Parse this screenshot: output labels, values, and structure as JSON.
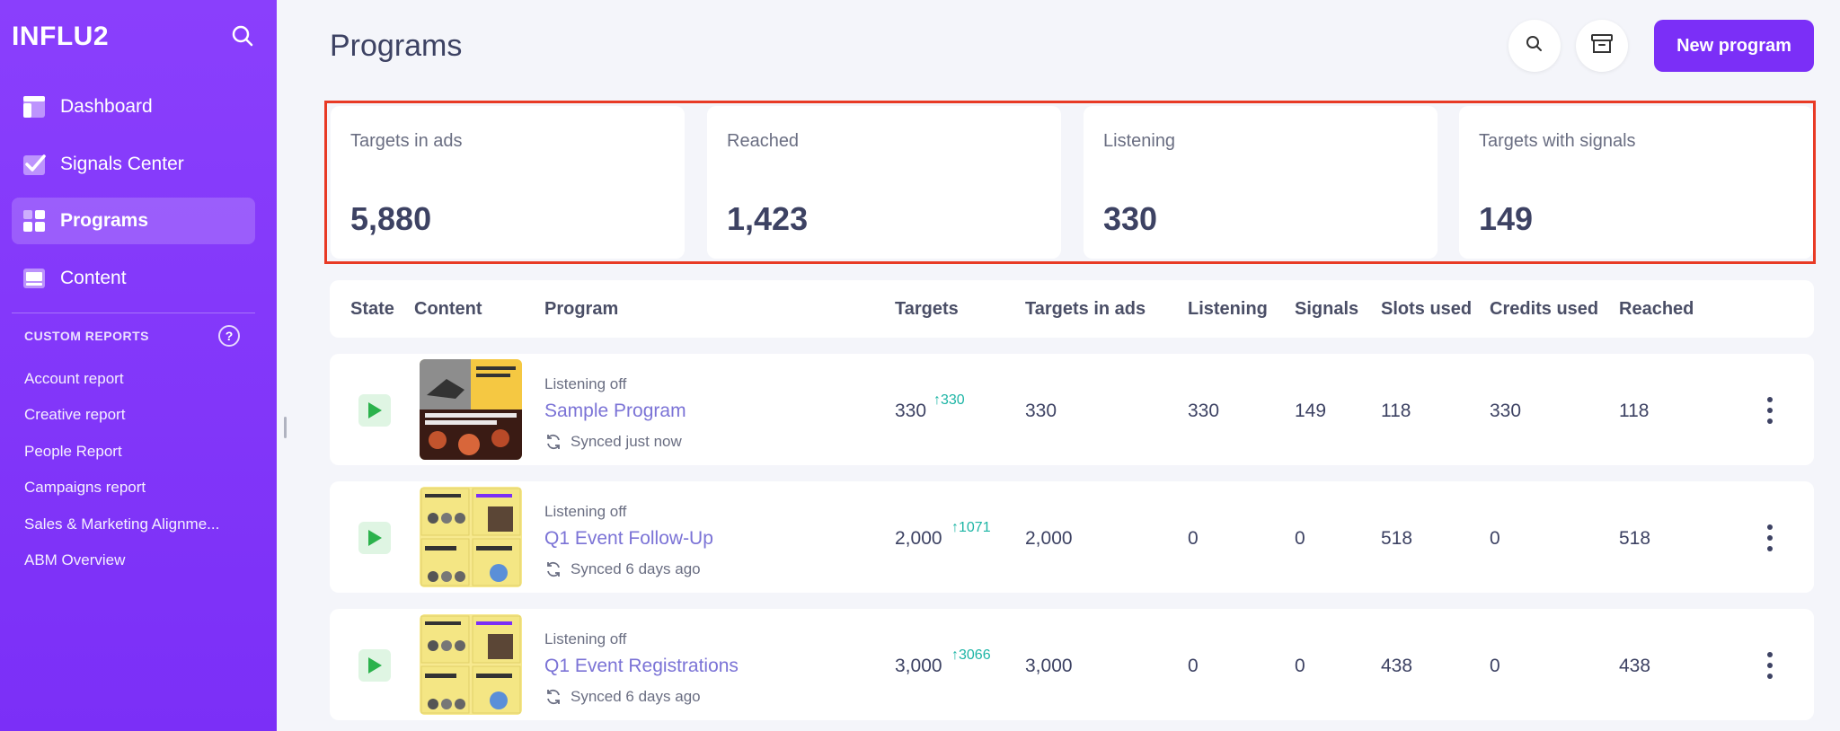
{
  "app": {
    "logo": "INFLU2"
  },
  "sidebar": {
    "nav": [
      {
        "label": "Dashboard",
        "icon": "dashboard-icon"
      },
      {
        "label": "Signals Center",
        "icon": "checkbox-icon"
      },
      {
        "label": "Programs",
        "icon": "grid-icon",
        "active": true
      },
      {
        "label": "Content",
        "icon": "content-icon"
      }
    ],
    "custom_reports_header": "CUSTOM REPORTS",
    "help": "?",
    "reports": [
      "Account report",
      "Creative report",
      "People Report",
      "Campaigns report",
      "Sales & Marketing Alignme...",
      "ABM Overview"
    ]
  },
  "header": {
    "title": "Programs",
    "new_button": "New program"
  },
  "stats": [
    {
      "label": "Targets in ads",
      "value": "5,880"
    },
    {
      "label": "Reached",
      "value": "1,423"
    },
    {
      "label": "Listening",
      "value": "330"
    },
    {
      "label": "Targets with signals",
      "value": "149"
    }
  ],
  "table": {
    "columns": [
      "State",
      "Content",
      "Program",
      "Targets",
      "Targets in ads",
      "Listening",
      "Signals",
      "Slots used",
      "Credits used",
      "Reached"
    ],
    "rows": [
      {
        "status": "Listening off",
        "program": "Sample Program",
        "sync": "Synced just now",
        "targets": "330",
        "delta": "330",
        "targets_in_ads": "330",
        "listening": "330",
        "signals": "149",
        "slots_used": "118",
        "credits_used": "330",
        "reached": "118"
      },
      {
        "status": "Listening off",
        "program": "Q1 Event Follow-Up",
        "sync": "Synced 6 days ago",
        "targets": "2,000",
        "delta": "1071",
        "targets_in_ads": "2,000",
        "listening": "0",
        "signals": "0",
        "slots_used": "518",
        "credits_used": "0",
        "reached": "518"
      },
      {
        "status": "Listening off",
        "program": "Q1 Event Registrations",
        "sync": "Synced 6 days ago",
        "targets": "3,000",
        "delta": "3066",
        "targets_in_ads": "3,000",
        "listening": "0",
        "signals": "0",
        "slots_used": "438",
        "credits_used": "0",
        "reached": "438"
      }
    ]
  },
  "colors": {
    "sidebar": "#7b2ff7",
    "accent": "#7b2ff7",
    "link": "#7b73d6",
    "delta": "#1db5a5",
    "highlight": "#e83a25"
  }
}
